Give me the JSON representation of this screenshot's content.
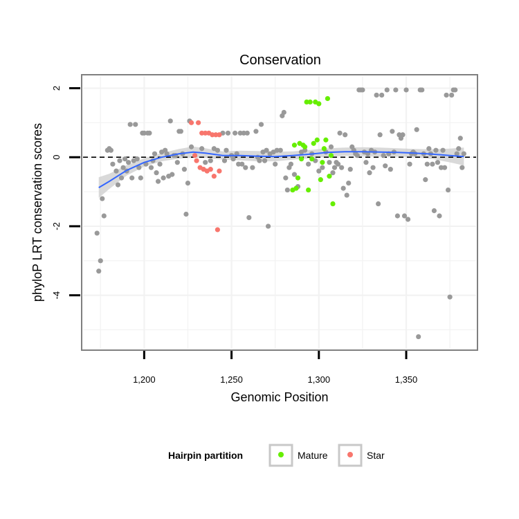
{
  "chart_data": {
    "type": "scatter",
    "title": "Conservation",
    "xlabel": "Genomic Position",
    "ylabel": "phyloP LRT conservation scores",
    "xlim": [
      1165,
      1390
    ],
    "ylim": [
      -5.55,
      2.35
    ],
    "x_ticks": [
      1200,
      1250,
      1300,
      1350
    ],
    "x_tick_labels": [
      "1,200",
      "1,250",
      "1,300",
      "1,350"
    ],
    "y_ticks": [
      2,
      0,
      -2,
      -4
    ],
    "y_tick_labels": [
      "2",
      "0",
      "-2",
      "-4"
    ],
    "grid": true,
    "reference_line": {
      "y": 0,
      "style": "dashed",
      "color": "#000000"
    },
    "legend": {
      "title": "Hairpin partition",
      "placement": "bottom",
      "entries": [
        {
          "label": "Mature",
          "color": "#66ee00"
        },
        {
          "label": "Star",
          "color": "#f8766d"
        }
      ]
    },
    "colors": {
      "other": "#999999",
      "mature": "#66ee00",
      "star": "#f8766d",
      "smooth": "#3366ff",
      "band": "#cccccc"
    },
    "series": [
      {
        "group": "other",
        "points": [
          [
            1173,
            -2.2
          ],
          [
            1174,
            -3.3
          ],
          [
            1175,
            -3.0
          ],
          [
            1176,
            -1.2
          ],
          [
            1177,
            -1.7
          ],
          [
            1179,
            0.2
          ],
          [
            1180,
            0.25
          ],
          [
            1181,
            0.2
          ],
          [
            1182,
            -0.2
          ],
          [
            1184,
            -0.4
          ],
          [
            1185,
            -0.8
          ],
          [
            1186,
            -0.1
          ],
          [
            1187,
            -0.6
          ],
          [
            1188,
            -0.3
          ],
          [
            1189,
            -0.05
          ],
          [
            1190,
            -0.4
          ],
          [
            1191,
            -0.15
          ],
          [
            1192,
            0.95
          ],
          [
            1193,
            -0.6
          ],
          [
            1194,
            -0.1
          ],
          [
            1195,
            0.95
          ],
          [
            1196,
            -0.05
          ],
          [
            1197,
            -0.3
          ],
          [
            1198,
            -0.6
          ],
          [
            1199,
            0.7
          ],
          [
            1200,
            0.7
          ],
          [
            1201,
            -0.2
          ],
          [
            1202,
            0.7
          ],
          [
            1203,
            0.7
          ],
          [
            1204,
            -0.3
          ],
          [
            1205,
            -0.1
          ],
          [
            1206,
            0.1
          ],
          [
            1207,
            -0.45
          ],
          [
            1208,
            -0.7
          ],
          [
            1209,
            -0.2
          ],
          [
            1210,
            0.15
          ],
          [
            1211,
            -0.6
          ],
          [
            1212,
            0.2
          ],
          [
            1213,
            0.1
          ],
          [
            1214,
            -0.55
          ],
          [
            1215,
            1.05
          ],
          [
            1216,
            -0.5
          ],
          [
            1217,
            0.05
          ],
          [
            1218,
            0.05
          ],
          [
            1219,
            -0.15
          ],
          [
            1220,
            0.75
          ],
          [
            1221,
            0.75
          ],
          [
            1222,
            0.1
          ],
          [
            1223,
            -0.35
          ],
          [
            1224,
            -1.65
          ],
          [
            1225,
            -0.75
          ],
          [
            1226,
            1.05
          ],
          [
            1227,
            0.3
          ],
          [
            1233,
            0.25
          ],
          [
            1235,
            -0.15
          ],
          [
            1238,
            -0.1
          ],
          [
            1240,
            0.25
          ],
          [
            1242,
            0.2
          ],
          [
            1245,
            0.7
          ],
          [
            1246,
            -0.1
          ],
          [
            1247,
            0.2
          ],
          [
            1248,
            0.7
          ],
          [
            1250,
            0.05
          ],
          [
            1251,
            -0.05
          ],
          [
            1252,
            0.7
          ],
          [
            1253,
            0.1
          ],
          [
            1254,
            -0.2
          ],
          [
            1255,
            0.7
          ],
          [
            1256,
            -0.2
          ],
          [
            1257,
            0.7
          ],
          [
            1258,
            -0.3
          ],
          [
            1259,
            0.7
          ],
          [
            1260,
            -1.75
          ],
          [
            1262,
            -0.3
          ],
          [
            1264,
            0.75
          ],
          [
            1265,
            0.0
          ],
          [
            1266,
            -0.1
          ],
          [
            1267,
            0.95
          ],
          [
            1268,
            0.15
          ],
          [
            1269,
            -0.1
          ],
          [
            1270,
            0.2
          ],
          [
            1271,
            -2.0
          ],
          [
            1272,
            0.1
          ],
          [
            1274,
            0.15
          ],
          [
            1275,
            -0.2
          ],
          [
            1276,
            0.2
          ],
          [
            1278,
            0.2
          ],
          [
            1279,
            1.2
          ],
          [
            1280,
            1.3
          ],
          [
            1281,
            -0.6
          ],
          [
            1282,
            -0.95
          ],
          [
            1283,
            -0.3
          ],
          [
            1284,
            -0.2
          ],
          [
            1286,
            -0.5
          ],
          [
            1288,
            -0.85
          ],
          [
            1290,
            0.15
          ],
          [
            1292,
            0.2
          ],
          [
            1294,
            -0.2
          ],
          [
            1296,
            0.1
          ],
          [
            1298,
            -0.1
          ],
          [
            1300,
            -0.4
          ],
          [
            1302,
            -0.3
          ],
          [
            1304,
            0.15
          ],
          [
            1306,
            -0.15
          ],
          [
            1307,
            0.3
          ],
          [
            1308,
            -0.45
          ],
          [
            1309,
            -0.3
          ],
          [
            1310,
            -0.15
          ],
          [
            1311,
            -0.2
          ],
          [
            1312,
            0.7
          ],
          [
            1313,
            -0.3
          ],
          [
            1314,
            -0.9
          ],
          [
            1315,
            0.65
          ],
          [
            1316,
            -1.1
          ],
          [
            1317,
            -0.75
          ],
          [
            1318,
            -0.35
          ],
          [
            1319,
            0.3
          ],
          [
            1320,
            0.2
          ],
          [
            1321,
            0.1
          ],
          [
            1322,
            0.05
          ],
          [
            1323,
            1.95
          ],
          [
            1324,
            1.95
          ],
          [
            1325,
            1.95
          ],
          [
            1326,
            0.15
          ],
          [
            1327,
            -0.15
          ],
          [
            1328,
            0.1
          ],
          [
            1329,
            -0.45
          ],
          [
            1330,
            0.2
          ],
          [
            1331,
            -0.3
          ],
          [
            1332,
            0.15
          ],
          [
            1333,
            1.8
          ],
          [
            1334,
            -1.35
          ],
          [
            1335,
            0.65
          ],
          [
            1336,
            1.8
          ],
          [
            1337,
            0.05
          ],
          [
            1338,
            -0.25
          ],
          [
            1339,
            1.95
          ],
          [
            1340,
            0.1
          ],
          [
            1341,
            -0.35
          ],
          [
            1342,
            0.75
          ],
          [
            1343,
            0.15
          ],
          [
            1344,
            1.95
          ],
          [
            1345,
            -1.7
          ],
          [
            1346,
            0.65
          ],
          [
            1347,
            0.55
          ],
          [
            1348,
            0.65
          ],
          [
            1349,
            -1.7
          ],
          [
            1350,
            1.95
          ],
          [
            1351,
            -1.8
          ],
          [
            1352,
            -0.2
          ],
          [
            1353,
            0.1
          ],
          [
            1354,
            0.15
          ],
          [
            1355,
            0.1
          ],
          [
            1356,
            0.8
          ],
          [
            1357,
            -5.2
          ],
          [
            1358,
            1.95
          ],
          [
            1359,
            1.95
          ],
          [
            1360,
            0.1
          ],
          [
            1361,
            -0.65
          ],
          [
            1362,
            -0.2
          ],
          [
            1363,
            0.25
          ],
          [
            1364,
            0.1
          ],
          [
            1365,
            -0.2
          ],
          [
            1366,
            -1.55
          ],
          [
            1367,
            0.2
          ],
          [
            1368,
            -0.15
          ],
          [
            1369,
            -1.7
          ],
          [
            1370,
            -0.3
          ],
          [
            1371,
            0.2
          ],
          [
            1372,
            -0.3
          ],
          [
            1373,
            1.8
          ],
          [
            1374,
            -0.95
          ],
          [
            1375,
            -4.05
          ],
          [
            1376,
            1.8
          ],
          [
            1377,
            1.95
          ],
          [
            1378,
            1.95
          ],
          [
            1379,
            0.1
          ],
          [
            1380,
            0.25
          ],
          [
            1381,
            0.55
          ],
          [
            1382,
            -0.3
          ],
          [
            1383,
            0.1
          ]
        ]
      },
      {
        "name": "Mature",
        "group": "mature",
        "points": [
          [
            1285,
            -0.95
          ],
          [
            1286,
            0.35
          ],
          [
            1287,
            -0.9
          ],
          [
            1288,
            -0.6
          ],
          [
            1289,
            0.4
          ],
          [
            1290,
            -0.05
          ],
          [
            1291,
            0.35
          ],
          [
            1292,
            0.3
          ],
          [
            1293,
            1.6
          ],
          [
            1294,
            -0.95
          ],
          [
            1295,
            1.6
          ],
          [
            1296,
            -0.05
          ],
          [
            1297,
            0.4
          ],
          [
            1298,
            1.6
          ],
          [
            1299,
            0.5
          ],
          [
            1300,
            1.55
          ],
          [
            1301,
            -0.65
          ],
          [
            1302,
            -0.15
          ],
          [
            1303,
            0.25
          ],
          [
            1304,
            0.5
          ],
          [
            1305,
            1.7
          ],
          [
            1306,
            -0.55
          ],
          [
            1307,
            0.05
          ],
          [
            1308,
            -1.35
          ]
        ]
      },
      {
        "name": "Star",
        "group": "star",
        "points": [
          [
            1227,
            1.0
          ],
          [
            1229,
            0.05
          ],
          [
            1230,
            -0.1
          ],
          [
            1231,
            1.0
          ],
          [
            1232,
            -0.3
          ],
          [
            1233,
            0.7
          ],
          [
            1234,
            -0.35
          ],
          [
            1235,
            0.7
          ],
          [
            1236,
            -0.4
          ],
          [
            1237,
            0.7
          ],
          [
            1238,
            -0.35
          ],
          [
            1239,
            0.65
          ],
          [
            1240,
            -0.55
          ],
          [
            1241,
            0.65
          ],
          [
            1242,
            -2.1
          ],
          [
            1243,
            -0.4
          ],
          [
            1243,
            0.65
          ]
        ]
      }
    ],
    "smooth": [
      [
        1174,
        -0.88
      ],
      [
        1180,
        -0.7
      ],
      [
        1190,
        -0.38
      ],
      [
        1200,
        -0.15
      ],
      [
        1210,
        0.0
      ],
      [
        1220,
        0.1
      ],
      [
        1228,
        0.15
      ],
      [
        1235,
        0.12
      ],
      [
        1245,
        0.05
      ],
      [
        1255,
        0.05
      ],
      [
        1265,
        0.03
      ],
      [
        1275,
        0.02
      ],
      [
        1285,
        0.05
      ],
      [
        1295,
        0.09
      ],
      [
        1305,
        0.14
      ],
      [
        1315,
        0.16
      ],
      [
        1325,
        0.16
      ],
      [
        1335,
        0.15
      ],
      [
        1345,
        0.14
      ],
      [
        1355,
        0.12
      ],
      [
        1365,
        0.09
      ],
      [
        1375,
        0.05
      ],
      [
        1383,
        0.02
      ]
    ],
    "smooth_band_halfwidth": [
      0.3,
      0.22,
      0.15,
      0.12,
      0.12,
      0.14,
      0.16,
      0.14,
      0.12,
      0.14,
      0.15,
      0.14,
      0.12,
      0.12,
      0.12,
      0.12,
      0.13,
      0.13,
      0.12,
      0.12,
      0.14,
      0.2,
      0.26
    ]
  }
}
